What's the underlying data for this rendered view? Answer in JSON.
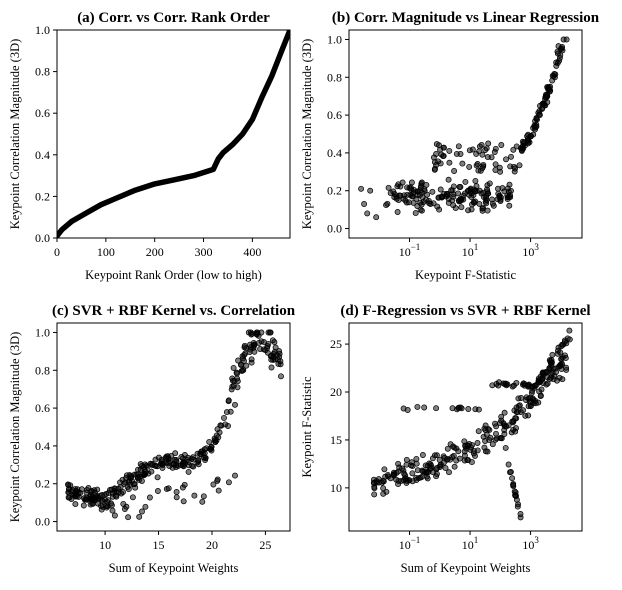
{
  "chart_data": [
    {
      "type": "line",
      "title": "(a) Corr. vs Corr. Rank Order",
      "xlabel": "Keypoint Rank Order (low to high)",
      "ylabel": "Keypoint Correlation Magnitude (3D)",
      "xlim": [
        0,
        477
      ],
      "ylim": [
        0,
        1.0
      ],
      "x_scale": "linear",
      "xticks": [
        0,
        100,
        200,
        300,
        400
      ],
      "xtick_labels": [
        "0",
        "100",
        "200",
        "300",
        "400"
      ],
      "yticks": [
        0,
        0.2,
        0.4,
        0.6,
        0.8,
        1.0
      ],
      "ytick_labels": [
        "0.0",
        "0.2",
        "0.4",
        "0.6",
        "0.8",
        "1.0"
      ],
      "curve_points": [
        [
          0,
          0.01
        ],
        [
          10,
          0.04
        ],
        [
          30,
          0.08
        ],
        [
          60,
          0.12
        ],
        [
          90,
          0.16
        ],
        [
          120,
          0.19
        ],
        [
          160,
          0.23
        ],
        [
          200,
          0.26
        ],
        [
          240,
          0.28
        ],
        [
          280,
          0.3
        ],
        [
          320,
          0.33
        ],
        [
          330,
          0.38
        ],
        [
          340,
          0.41
        ],
        [
          360,
          0.45
        ],
        [
          380,
          0.5
        ],
        [
          400,
          0.57
        ],
        [
          420,
          0.68
        ],
        [
          440,
          0.78
        ],
        [
          460,
          0.9
        ],
        [
          477,
          1.0
        ]
      ]
    },
    {
      "type": "scatter",
      "title": "(b) Corr. Magnitude vs Linear Regression",
      "xlabel": "Keypoint F-Statistic",
      "ylabel": "Keypoint Correlation Magnitude (3D)",
      "x_scale": "log",
      "xlim": [
        0.001,
        50000
      ],
      "ylim": [
        -0.05,
        1.05
      ],
      "xticks": [
        0.1,
        10,
        1000
      ],
      "xtick_labels": [
        "10^{-1}",
        "10^{1}",
        "10^{3}"
      ],
      "yticks": [
        0,
        0.2,
        0.4,
        0.6,
        0.8,
        1.0
      ],
      "ytick_labels": [
        "0.0",
        "0.2",
        "0.4",
        "0.6",
        "0.8",
        "1.0"
      ],
      "clusters": [
        {
          "x_log_range": [
            -1.8,
            2.4
          ],
          "y_range": [
            0.0,
            0.33
          ],
          "count": 170
        },
        {
          "x_log_range": [
            -0.3,
            3.0
          ],
          "y_range": [
            0.28,
            0.48
          ],
          "count": 60
        },
        {
          "x_log_range": [
            2.6,
            4.2
          ],
          "y_range": [
            0.42,
            1.0
          ],
          "count": 80
        }
      ]
    },
    {
      "type": "scatter",
      "title": "(c) SVR + RBF Kernel vs. Correlation",
      "xlabel": "Sum of Keypoint Weights",
      "ylabel": "Keypoint Correlation Magnitude (3D)",
      "x_scale": "linear",
      "xlim": [
        5.5,
        27.3
      ],
      "ylim": [
        -0.05,
        1.05
      ],
      "xticks": [
        10,
        15,
        20,
        25
      ],
      "xtick_labels": [
        "10",
        "15",
        "20",
        "25"
      ],
      "yticks": [
        0,
        0.2,
        0.4,
        0.6,
        0.8,
        1.0
      ],
      "ytick_labels": [
        "0.0",
        "0.2",
        "0.4",
        "0.6",
        "0.8",
        "1.0"
      ],
      "trend": [
        [
          6.5,
          0.16
        ],
        [
          10,
          0.1
        ],
        [
          12,
          0.2
        ],
        [
          14,
          0.28
        ],
        [
          16,
          0.32
        ],
        [
          18,
          0.3
        ],
        [
          20,
          0.4
        ],
        [
          21,
          0.5
        ],
        [
          22,
          0.7
        ],
        [
          23,
          0.9
        ],
        [
          24.5,
          0.98
        ],
        [
          26.5,
          0.85
        ]
      ]
    },
    {
      "type": "scatter",
      "title": "(d) F-Regression vs SVR + RBF Kernel",
      "xlabel": "Sum of Keypoint Weights",
      "ylabel": "Keypoint F-Statistic",
      "x_scale": "log",
      "xlim": [
        0.001,
        50000
      ],
      "ylim": [
        5.5,
        27.2
      ],
      "xticks": [
        0.1,
        10,
        1000
      ],
      "xtick_labels": [
        "10^{-1}",
        "10^{1}",
        "10^{3}"
      ],
      "yticks": [
        10,
        15,
        20,
        25
      ],
      "ytick_labels": [
        "10",
        "15",
        "20",
        "25"
      ],
      "trend": [
        [
          0.01,
          10.5
        ],
        [
          0.1,
          11.5
        ],
        [
          1,
          12.5
        ],
        [
          10,
          14
        ],
        [
          100,
          16
        ],
        [
          1000,
          19
        ],
        [
          5000,
          22
        ],
        [
          20000,
          23
        ]
      ]
    }
  ]
}
